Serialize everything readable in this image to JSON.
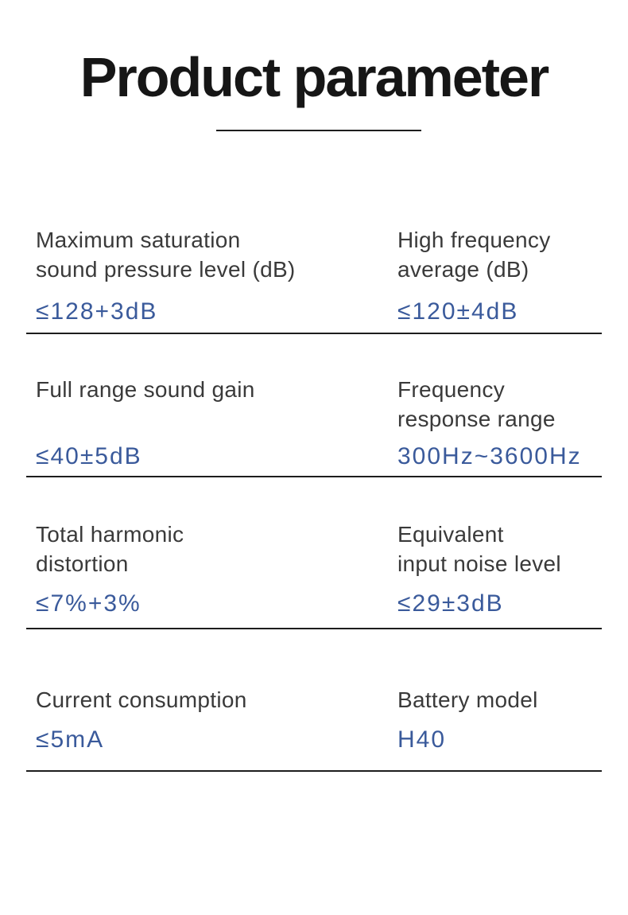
{
  "page": {
    "title": "Product parameter",
    "colors": {
      "accent": "#3a5a9b",
      "label": "#3a3a3a",
      "title": "#161616",
      "rule": "#1d1d1d",
      "bg": "#ffffff"
    }
  },
  "rows": [
    {
      "left": {
        "label": "Maximum saturation\nsound pressure level (dB)",
        "value": "≤128+3dB"
      },
      "right": {
        "label": "High frequency\naverage (dB)",
        "value": "≤120±4dB"
      }
    },
    {
      "left": {
        "label": "Full range sound gain",
        "value": "≤40±5dB"
      },
      "right": {
        "label": "Frequency\nresponse range",
        "value": "300Hz~3600Hz"
      }
    },
    {
      "left": {
        "label": "Total harmonic\ndistortion",
        "value": "≤7%+3%"
      },
      "right": {
        "label": "Equivalent\ninput noise level",
        "value": "≤29±3dB"
      }
    },
    {
      "left": {
        "label": "Current consumption",
        "value": "≤5mA"
      },
      "right": {
        "label": "Battery model",
        "value": "H40"
      }
    }
  ]
}
